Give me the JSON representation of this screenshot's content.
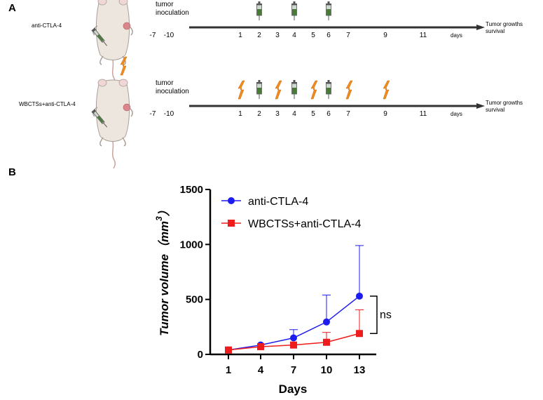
{
  "panel_a": {
    "label": "A",
    "rows": [
      {
        "group_label": "anti-CTLA-4",
        "inoculation_label": "tumor inoculation",
        "pre_days": [
          "-7",
          "-10"
        ],
        "day_ticks": [
          "1",
          "2",
          "3",
          "4",
          "5",
          "6",
          "7",
          "9",
          "11"
        ],
        "injection_days": [
          "2",
          "4",
          "6"
        ],
        "lightning_days": [],
        "axis_label": "days",
        "endpoint": [
          "Tumor growths",
          "survival"
        ]
      },
      {
        "group_label": "WBCTSs+anti-CTLA-4",
        "inoculation_label": "tumor inoculation",
        "pre_days": [
          "-7",
          "-10"
        ],
        "day_ticks": [
          "1",
          "2",
          "3",
          "4",
          "5",
          "6",
          "7",
          "9",
          "11"
        ],
        "injection_days": [
          "2",
          "4",
          "6"
        ],
        "lightning_days": [
          "1",
          "3",
          "5",
          "7",
          "9"
        ],
        "axis_label": "days",
        "endpoint": [
          "Tumor growths",
          "survival"
        ]
      }
    ],
    "colors": {
      "timeline": "#333333",
      "syringe": "#4a7a3a",
      "lightning": "#f08c1e",
      "mouse": "#ece6df",
      "tumor": "#d9868c"
    }
  },
  "panel_b": {
    "label": "B"
  },
  "chart_data": {
    "type": "line",
    "title": "",
    "xlabel": "Days",
    "ylabel": "Tumor volume（mm",
    "ylabel_superscript": "3",
    "ylabel_close": "）",
    "categories": [
      1,
      4,
      7,
      10,
      13
    ],
    "xticks": [
      "1",
      "4",
      "7",
      "10",
      "13"
    ],
    "yticks": [
      "0",
      "500",
      "1000",
      "1500"
    ],
    "ylim": [
      0,
      1500
    ],
    "series": [
      {
        "name": "anti-CTLA-4",
        "marker": "circle",
        "color": "#1c1cf0",
        "values": [
          40,
          85,
          150,
          295,
          530
        ],
        "error_upper": [
          0,
          0,
          75,
          245,
          460
        ]
      },
      {
        "name": "WBCTSs+anti-CTLA-4",
        "marker": "square",
        "color": "#ee1c1c",
        "values": [
          40,
          70,
          85,
          110,
          190
        ],
        "error_upper": [
          0,
          0,
          0,
          90,
          215
        ]
      }
    ],
    "annotation": "ns",
    "legend_position": "top-left"
  }
}
